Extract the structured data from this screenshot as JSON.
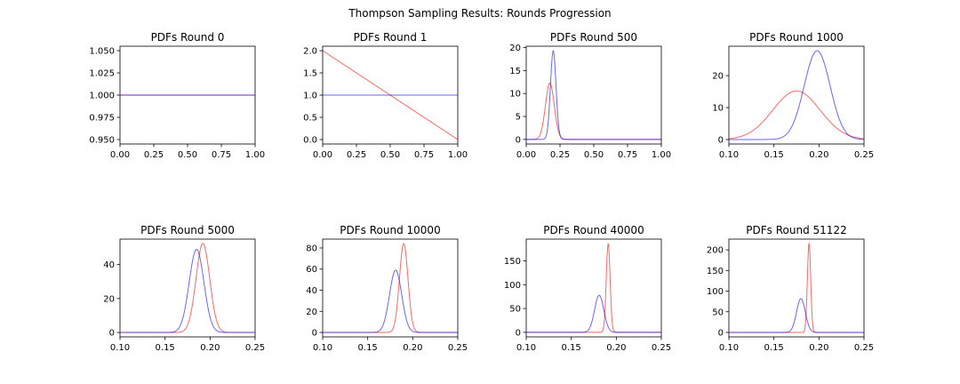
{
  "figure": {
    "title": "Thompson Sampling Results: Rounds Progression"
  },
  "series_colors": {
    "red": "#ff0000",
    "blue": "#0000ff"
  },
  "chart_data": [
    {
      "type": "line",
      "title": "PDFs Round 0",
      "xlim": [
        0.0,
        1.0
      ],
      "ylim": [
        0.945,
        1.055
      ],
      "xticks": [
        "0.00",
        "0.25",
        "0.50",
        "0.75",
        "1.00"
      ],
      "xtick_values": [
        0.0,
        0.25,
        0.5,
        0.75,
        1.0
      ],
      "yticks": [
        "0.950",
        "0.975",
        "1.000",
        "1.025",
        "1.050"
      ],
      "ytick_values": [
        0.95,
        0.975,
        1.0,
        1.025,
        1.05
      ],
      "series": [
        {
          "color": "red",
          "beta": [
            1,
            1
          ]
        },
        {
          "color": "blue",
          "beta": [
            1,
            1
          ]
        }
      ]
    },
    {
      "type": "line",
      "title": "PDFs Round 1",
      "xlim": [
        0.0,
        1.0
      ],
      "ylim": [
        -0.1,
        2.1
      ],
      "xticks": [
        "0.00",
        "0.25",
        "0.50",
        "0.75",
        "1.00"
      ],
      "xtick_values": [
        0.0,
        0.25,
        0.5,
        0.75,
        1.0
      ],
      "yticks": [
        "0.0",
        "0.5",
        "1.0",
        "1.5",
        "2.0"
      ],
      "ytick_values": [
        0.0,
        0.5,
        1.0,
        1.5,
        2.0
      ],
      "series": [
        {
          "color": "red",
          "beta": [
            1,
            2
          ]
        },
        {
          "color": "blue",
          "beta": [
            1,
            1
          ]
        }
      ]
    },
    {
      "type": "line",
      "title": "PDFs Round 500",
      "xlim": [
        0.0,
        1.0
      ],
      "ylim": [
        -1.0,
        20.3
      ],
      "xticks": [
        "0.00",
        "0.25",
        "0.50",
        "0.75",
        "1.00"
      ],
      "xtick_values": [
        0.0,
        0.25,
        0.5,
        0.75,
        1.0
      ],
      "yticks": [
        "0",
        "5",
        "10",
        "15",
        "20"
      ],
      "ytick_values": [
        0,
        5,
        10,
        15,
        20
      ],
      "series": [
        {
          "color": "red",
          "peak_x": 0.175,
          "peak_y": 12.3
        },
        {
          "color": "blue",
          "peak_x": 0.2,
          "peak_y": 19.3
        }
      ]
    },
    {
      "type": "line",
      "title": "PDFs Round 1000",
      "xlim": [
        0.1,
        0.25
      ],
      "ylim": [
        -1.4,
        29.2
      ],
      "xticks": [
        "0.10",
        "0.15",
        "0.20",
        "0.25"
      ],
      "xtick_values": [
        0.1,
        0.15,
        0.2,
        0.25
      ],
      "yticks": [
        "0",
        "10",
        "20"
      ],
      "ytick_values": [
        0,
        10,
        20
      ],
      "series": [
        {
          "color": "red",
          "peak_x": 0.175,
          "peak_y": 15.2
        },
        {
          "color": "blue",
          "peak_x": 0.198,
          "peak_y": 27.8
        }
      ]
    },
    {
      "type": "line",
      "title": "PDFs Round 5000",
      "xlim": [
        0.1,
        0.25
      ],
      "ylim": [
        -2.6,
        55.0
      ],
      "xticks": [
        "0.10",
        "0.15",
        "0.20",
        "0.25"
      ],
      "xtick_values": [
        0.1,
        0.15,
        0.2,
        0.25
      ],
      "yticks": [
        "0",
        "20",
        "40"
      ],
      "ytick_values": [
        0,
        20,
        40
      ],
      "series": [
        {
          "color": "red",
          "peak_x": 0.192,
          "peak_y": 52.4
        },
        {
          "color": "blue",
          "peak_x": 0.185,
          "peak_y": 49.0
        }
      ]
    },
    {
      "type": "line",
      "title": "PDFs Round 10000",
      "xlim": [
        0.1,
        0.25
      ],
      "ylim": [
        -4.2,
        88.4
      ],
      "xticks": [
        "0.10",
        "0.15",
        "0.20",
        "0.25"
      ],
      "xtick_values": [
        0.1,
        0.15,
        0.2,
        0.25
      ],
      "yticks": [
        "0",
        "20",
        "40",
        "60",
        "80"
      ],
      "ytick_values": [
        0,
        20,
        40,
        60,
        80
      ],
      "series": [
        {
          "color": "red",
          "peak_x": 0.19,
          "peak_y": 84.0
        },
        {
          "color": "blue",
          "peak_x": 0.181,
          "peak_y": 59.0
        }
      ]
    },
    {
      "type": "line",
      "title": "PDFs Round 40000",
      "xlim": [
        0.1,
        0.25
      ],
      "ylim": [
        -9.6,
        196.0
      ],
      "xticks": [
        "0.10",
        "0.15",
        "0.20",
        "0.25"
      ],
      "xtick_values": [
        0.1,
        0.15,
        0.2,
        0.25
      ],
      "yticks": [
        "0",
        "50",
        "100",
        "150"
      ],
      "ytick_values": [
        0,
        50,
        100,
        150
      ],
      "series": [
        {
          "color": "red",
          "peak_x": 0.191,
          "peak_y": 186.0
        },
        {
          "color": "blue",
          "peak_x": 0.181,
          "peak_y": 78.0
        }
      ]
    },
    {
      "type": "line",
      "title": "PDFs Round 51122",
      "xlim": [
        0.1,
        0.25
      ],
      "ylim": [
        -10.8,
        226.0
      ],
      "xticks": [
        "0.10",
        "0.15",
        "0.20",
        "0.25"
      ],
      "xtick_values": [
        0.1,
        0.15,
        0.2,
        0.25
      ],
      "yticks": [
        "0",
        "50",
        "100",
        "150",
        "200"
      ],
      "ytick_values": [
        0,
        50,
        100,
        150,
        200
      ],
      "series": [
        {
          "color": "red",
          "peak_x": 0.189,
          "peak_y": 215.0
        },
        {
          "color": "blue",
          "peak_x": 0.18,
          "peak_y": 82.0
        }
      ]
    }
  ]
}
